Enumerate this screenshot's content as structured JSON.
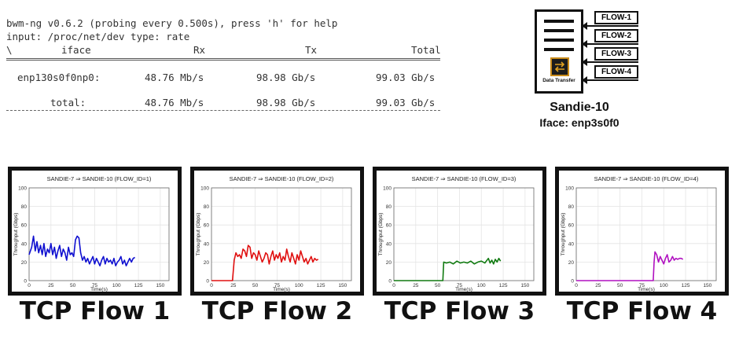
{
  "terminal": {
    "line1": "bwm-ng v0.6.2 (probing every 0.500s), press 'h' for help",
    "line2": "input: /proc/net/dev type: rate",
    "headers": {
      "sep": "\\",
      "iface": "iface",
      "rx": "Rx",
      "tx": "Tx",
      "total": "Total"
    },
    "rows": [
      {
        "iface": "enp130s0f0np0:",
        "rx": "48.76 Mb/s",
        "tx": "98.98 Gb/s",
        "total": "99.03 Gb/s"
      }
    ],
    "total_row": {
      "iface": "total:",
      "rx": "48.76 Mb/s",
      "tx": "98.98 Gb/s",
      "total": "99.03 Gb/s"
    }
  },
  "node": {
    "name": "Sandie-10",
    "iface": "Iface: enp3s0f0",
    "server_label": "Data Transfer",
    "icon": "data-transfer-icon",
    "flows": [
      "FLOW-1",
      "FLOW-2",
      "FLOW-3",
      "FLOW-4"
    ]
  },
  "captions": [
    "TCP Flow 1",
    "TCP Flow 2",
    "TCP Flow 3",
    "TCP Flow 4"
  ],
  "chart_data": [
    {
      "type": "line",
      "title": "SANDIE-7 ⇒ SANDIE-10 (FLOW_ID=1)",
      "xlabel": "Time(s)",
      "ylabel": "Throughput (Gbps)",
      "xlim": [
        0,
        160
      ],
      "ylim": [
        0,
        100
      ],
      "xticks": [
        0,
        25,
        50,
        75,
        100,
        125,
        150
      ],
      "yticks": [
        0,
        20,
        40,
        60,
        80,
        100
      ],
      "grid": true,
      "color": "#1010d0",
      "series": [
        {
          "x": [
            0,
            3,
            5,
            7,
            9,
            11,
            13,
            15,
            17,
            19,
            21,
            23,
            25,
            27,
            29,
            31,
            33,
            35,
            37,
            39,
            41,
            43,
            45,
            47,
            49,
            51,
            53,
            55,
            57,
            59,
            61,
            63,
            65,
            67,
            69,
            71,
            73,
            75,
            77,
            79,
            81,
            83,
            85,
            87,
            89,
            91,
            93,
            95,
            97,
            99,
            101,
            103,
            105,
            107,
            109,
            111,
            113,
            115,
            117,
            119,
            121
          ],
          "y": [
            28,
            36,
            48,
            32,
            42,
            30,
            38,
            28,
            40,
            26,
            34,
            30,
            40,
            28,
            36,
            24,
            32,
            38,
            26,
            34,
            30,
            22,
            36,
            28,
            30,
            26,
            44,
            48,
            46,
            30,
            22,
            26,
            20,
            24,
            18,
            22,
            26,
            18,
            24,
            20,
            16,
            22,
            26,
            18,
            24,
            20,
            22,
            18,
            24,
            16,
            20,
            22,
            26,
            18,
            22,
            16,
            20,
            24,
            20,
            24,
            25
          ]
        }
      ]
    },
    {
      "type": "line",
      "title": "SANDIE-7 ⇒ SANDIE-10 (FLOW_ID=2)",
      "xlabel": "Time(s)",
      "ylabel": "Throughput (Gbps)",
      "xlim": [
        0,
        160
      ],
      "ylim": [
        0,
        100
      ],
      "xticks": [
        0,
        25,
        50,
        75,
        100,
        125,
        150
      ],
      "yticks": [
        0,
        20,
        40,
        60,
        80,
        100
      ],
      "grid": true,
      "color": "#e01010",
      "series": [
        {
          "x": [
            0,
            24,
            26,
            28,
            30,
            32,
            34,
            36,
            38,
            40,
            42,
            44,
            46,
            48,
            50,
            52,
            54,
            56,
            58,
            60,
            62,
            64,
            66,
            68,
            70,
            72,
            74,
            76,
            78,
            80,
            82,
            84,
            86,
            88,
            90,
            92,
            94,
            96,
            98,
            100,
            102,
            104,
            106,
            108,
            110,
            112,
            114,
            116,
            118,
            120,
            122
          ],
          "y": [
            0,
            0,
            22,
            30,
            26,
            28,
            24,
            34,
            32,
            26,
            38,
            36,
            24,
            30,
            28,
            22,
            32,
            26,
            20,
            24,
            30,
            28,
            18,
            26,
            32,
            22,
            28,
            24,
            30,
            20,
            26,
            22,
            34,
            26,
            20,
            30,
            24,
            18,
            28,
            22,
            32,
            26,
            20,
            24,
            18,
            22,
            26,
            20,
            24,
            22,
            23
          ]
        }
      ]
    },
    {
      "type": "line",
      "title": "SANDIE-7 ⇒ SANDIE-10 (FLOW_ID=3)",
      "xlabel": "Time(s)",
      "ylabel": "Throughput (Gbps)",
      "xlim": [
        0,
        160
      ],
      "ylim": [
        0,
        100
      ],
      "xticks": [
        0,
        25,
        50,
        75,
        100,
        125,
        150
      ],
      "yticks": [
        0,
        20,
        40,
        60,
        80,
        100
      ],
      "grid": true,
      "color": "#107a10",
      "series": [
        {
          "x": [
            0,
            56,
            57,
            60,
            64,
            68,
            72,
            76,
            80,
            84,
            88,
            92,
            96,
            100,
            104,
            108,
            110,
            112,
            114,
            116,
            118,
            120,
            122
          ],
          "y": [
            0,
            0,
            20,
            19,
            20,
            18,
            21,
            19,
            20,
            19,
            21,
            18,
            20,
            21,
            19,
            24,
            19,
            22,
            18,
            23,
            20,
            24,
            21
          ]
        }
      ]
    },
    {
      "type": "line",
      "title": "SANDIE-7 ⇒ SANDIE-10 (FLOW_ID=4)",
      "xlabel": "Time(s)",
      "ylabel": "Throughput (Gbps)",
      "xlim": [
        0,
        160
      ],
      "ylim": [
        0,
        100
      ],
      "xticks": [
        0,
        25,
        50,
        75,
        100,
        125,
        150
      ],
      "yticks": [
        0,
        20,
        40,
        60,
        80,
        100
      ],
      "grid": true,
      "color": "#b010c0",
      "series": [
        {
          "x": [
            0,
            88,
            89,
            90,
            92,
            94,
            96,
            98,
            100,
            102,
            104,
            106,
            108,
            110,
            112,
            114,
            116,
            118,
            120,
            122
          ],
          "y": [
            0,
            0,
            20,
            31,
            28,
            20,
            26,
            22,
            18,
            24,
            28,
            20,
            22,
            26,
            22,
            24,
            23,
            24,
            24,
            23
          ]
        }
      ]
    }
  ]
}
